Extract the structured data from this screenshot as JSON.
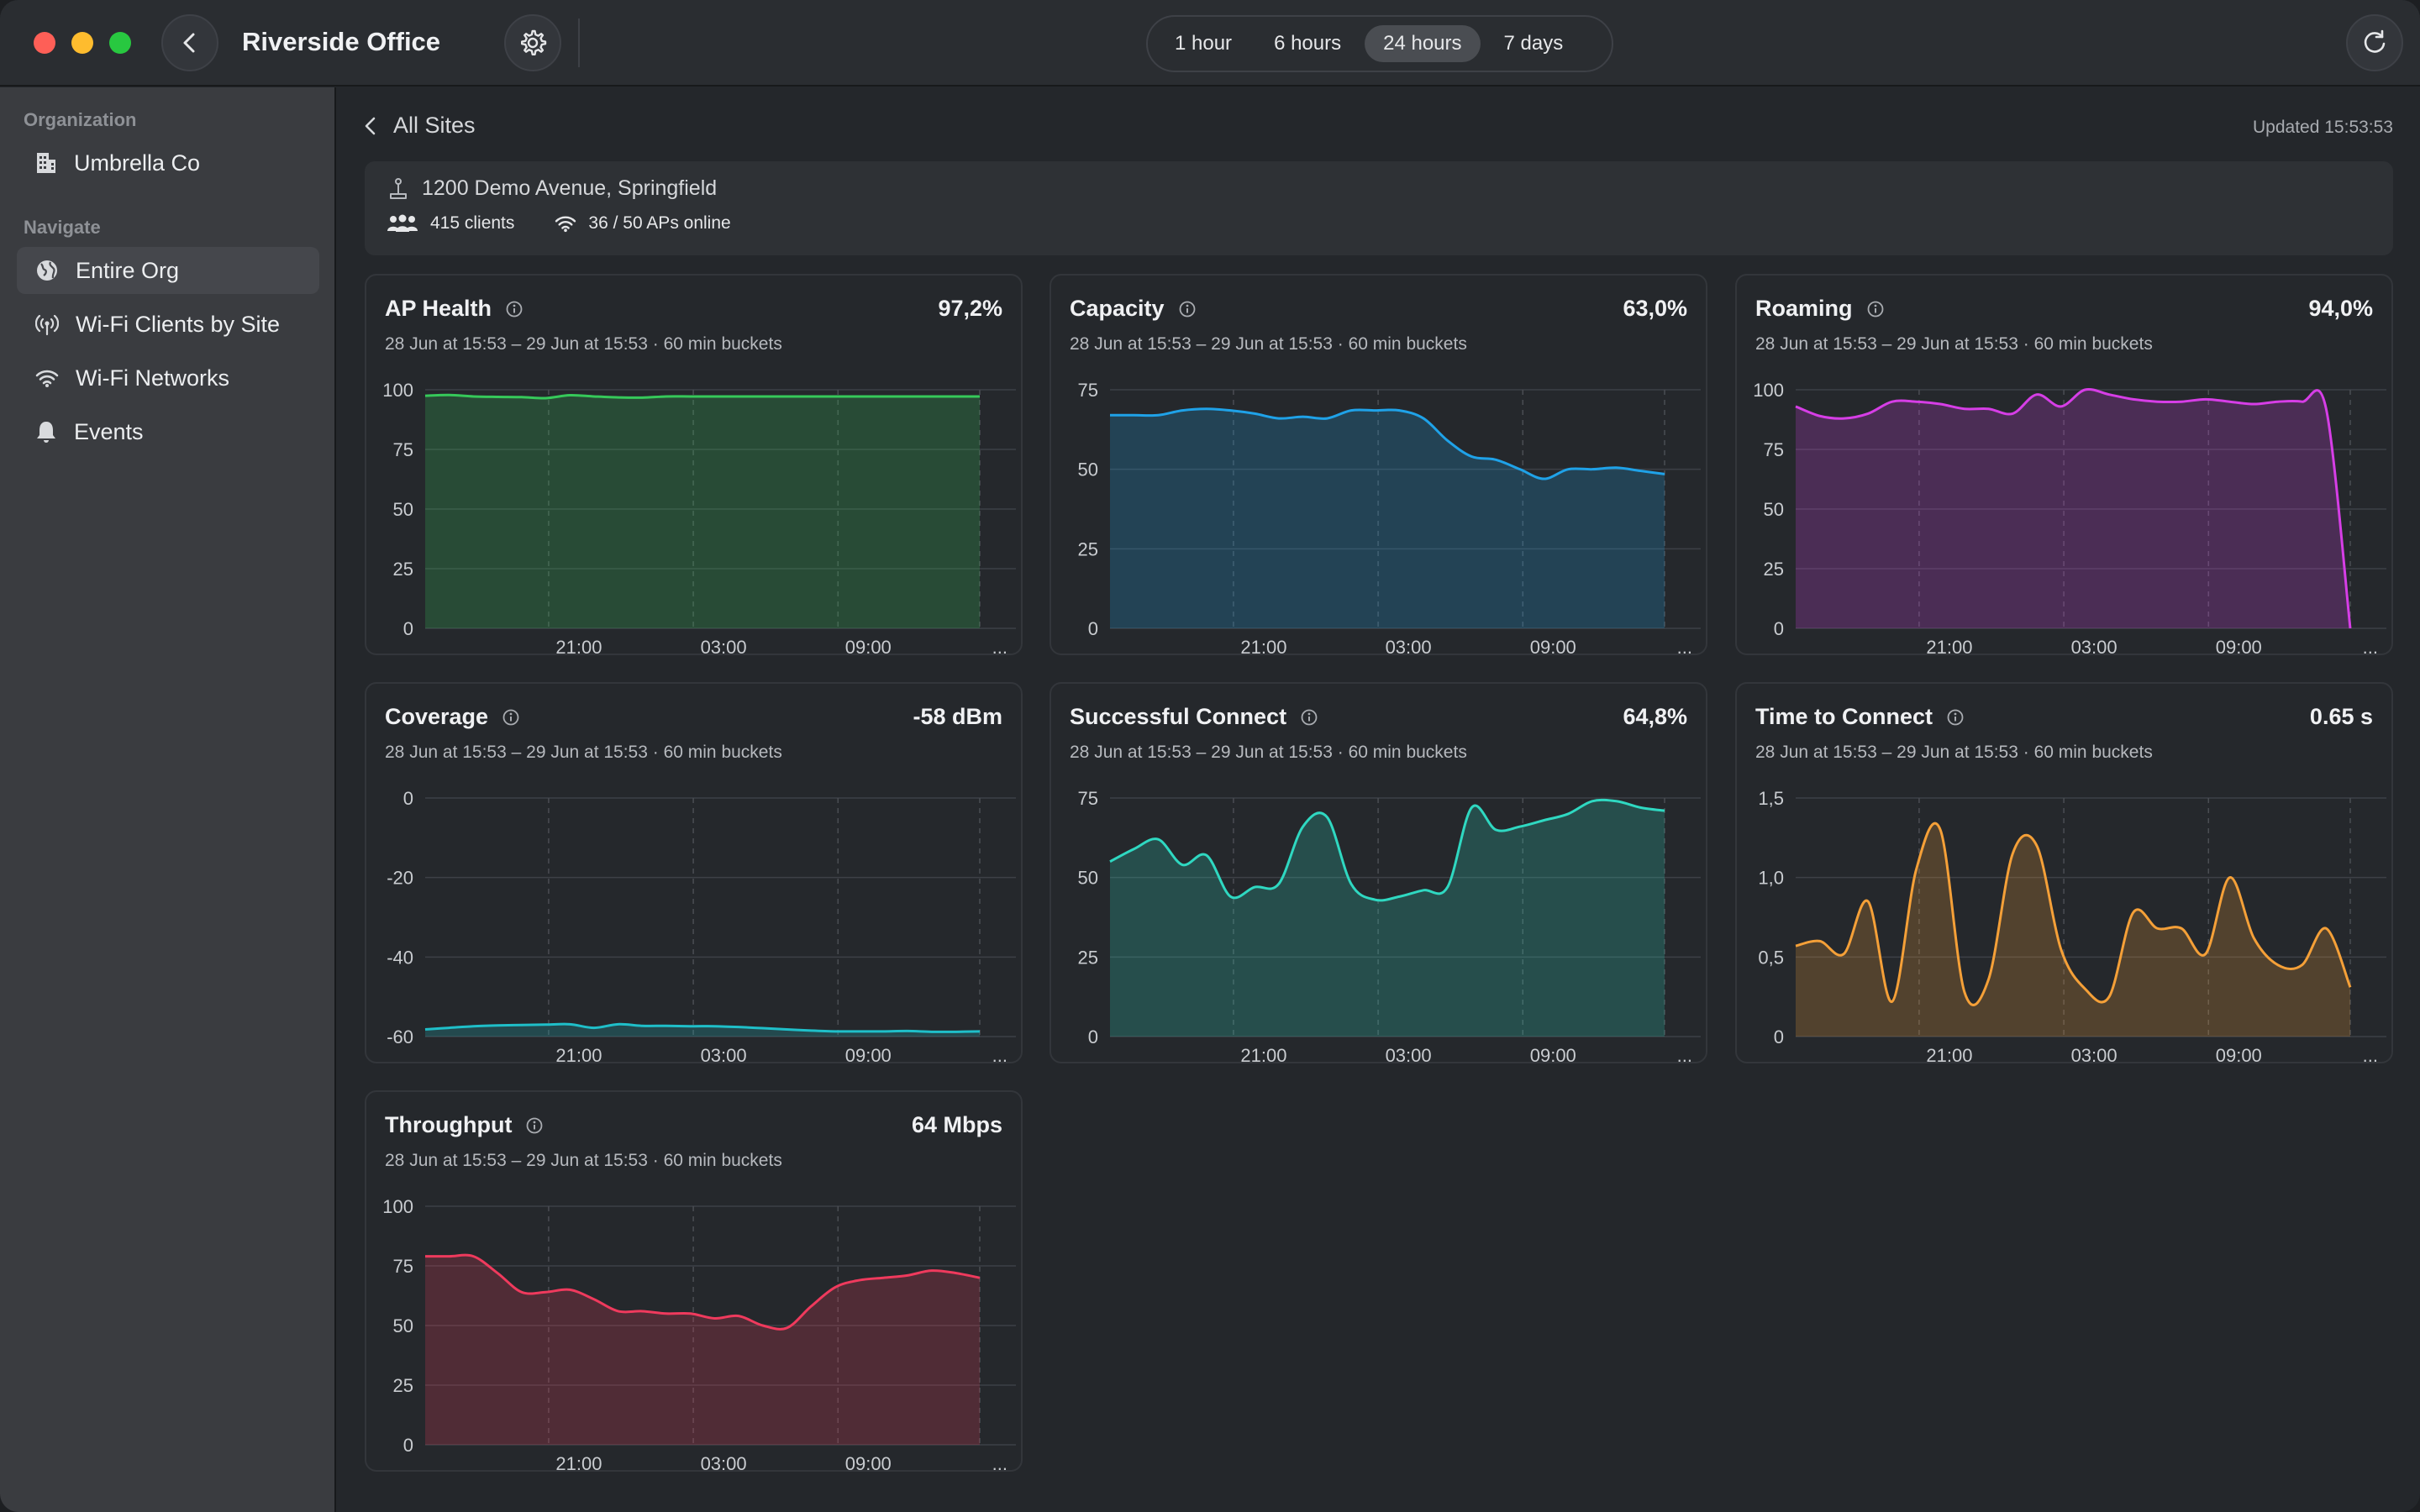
{
  "window": {
    "title": "Riverside Office"
  },
  "toolbar": {
    "ranges": [
      "1 hour",
      "6 hours",
      "24 hours",
      "7 days"
    ],
    "active_range": "24 hours"
  },
  "sidebar": {
    "org_section": "Organization",
    "org_name": "Umbrella Co",
    "nav_section": "Navigate",
    "items": [
      {
        "label": "Entire Org",
        "icon": "globe-icon"
      },
      {
        "label": "Wi-Fi Clients by Site",
        "icon": "antenna-icon"
      },
      {
        "label": "Wi-Fi Networks",
        "icon": "wifi-icon"
      },
      {
        "label": "Events",
        "icon": "bell-icon"
      }
    ],
    "active_item": "Entire Org"
  },
  "main": {
    "breadcrumb": "All Sites",
    "updated": "Updated 15:53:53",
    "site": {
      "address": "1200 Demo Avenue, Springfield",
      "clients": "415 clients",
      "aps": "36 / 50 APs online"
    }
  },
  "colors": {
    "green": "#36c95a",
    "blue": "#1fa2e8",
    "magenta": "#d63ee6",
    "teal": "#1fbfc9",
    "cyan": "#2fd8c1",
    "orange": "#f5a038",
    "red": "#ef3a5d"
  },
  "chart_data": [
    {
      "type": "area",
      "title": "AP Health",
      "value": "97,2%",
      "subtitle": "28 Jun at 15:53 – 29 Jun at 15:53 · 60 min buckets",
      "color": "#36c95a",
      "ylim": [
        0,
        100
      ],
      "yticks": [
        "100",
        "75",
        "50",
        "25",
        "0"
      ],
      "xticks": [
        "21:00",
        "03:00",
        "09:00",
        "..."
      ],
      "x_of_ticks": [
        5.12,
        11.12,
        17.12
      ],
      "x": [
        0,
        1,
        2,
        3,
        4,
        5,
        6,
        7,
        8,
        9,
        10,
        11,
        12,
        13,
        14,
        15,
        16,
        17,
        18,
        19,
        20,
        21,
        22,
        23
      ],
      "values": [
        97.5,
        97.8,
        97.2,
        97.0,
        96.9,
        96.5,
        97.7,
        97.2,
        96.8,
        96.7,
        97.2,
        97.2,
        97.2,
        97.2,
        97.2,
        97.2,
        97.2,
        97.2,
        97.2,
        97.2,
        97.2,
        97.2,
        97.2,
        97.2
      ]
    },
    {
      "type": "area",
      "title": "Capacity",
      "value": "63,0%",
      "subtitle": "28 Jun at 15:53 – 29 Jun at 15:53 · 60 min buckets",
      "color": "#1fa2e8",
      "ylim": [
        0,
        75
      ],
      "yticks": [
        "75",
        "50",
        "25",
        "0"
      ],
      "xticks": [
        "21:00",
        "03:00",
        "09:00",
        "..."
      ],
      "x_of_ticks": [
        5.12,
        11.12,
        17.12
      ],
      "x": [
        0,
        1,
        2,
        3,
        4,
        5,
        6,
        7,
        8,
        9,
        10,
        11,
        12,
        13,
        14,
        15,
        16,
        17,
        18,
        19,
        20,
        21,
        22,
        23
      ],
      "values": [
        67,
        67,
        67,
        68.5,
        69,
        68.5,
        67.5,
        66,
        66.5,
        66,
        68.5,
        68.5,
        68.5,
        66,
        59,
        54,
        53,
        50,
        47,
        50,
        50,
        50.5,
        49.5,
        48.5
      ]
    },
    {
      "type": "area",
      "title": "Roaming",
      "value": "94,0%",
      "subtitle": "28 Jun at 15:53 – 29 Jun at 15:53 · 60 min buckets",
      "color": "#d63ee6",
      "ylim": [
        0,
        100
      ],
      "yticks": [
        "100",
        "75",
        "50",
        "25",
        "0"
      ],
      "xticks": [
        "21:00",
        "03:00",
        "09:00",
        "..."
      ],
      "x_of_ticks": [
        5.12,
        11.12,
        17.12
      ],
      "x": [
        0,
        1,
        2,
        3,
        4,
        5,
        6,
        7,
        8,
        9,
        10,
        11,
        12,
        13,
        14,
        15,
        16,
        17,
        18,
        19,
        20,
        21,
        22,
        23
      ],
      "values": [
        93,
        89,
        88,
        90,
        95,
        95,
        94,
        92,
        92,
        90,
        98,
        93,
        100,
        98,
        96,
        95,
        95,
        96,
        95,
        94,
        95,
        95,
        92,
        0
      ]
    },
    {
      "type": "area",
      "title": "Coverage",
      "value": "-58 dBm",
      "subtitle": "28 Jun at 15:53 – 29 Jun at 15:53 · 60 min buckets",
      "color": "#1fbfc9",
      "ylim": [
        -60,
        0
      ],
      "yticks": [
        "0",
        "-20",
        "-40",
        "-60"
      ],
      "xticks": [
        "21:00",
        "03:00",
        "09:00",
        "..."
      ],
      "x_of_ticks": [
        5.12,
        11.12,
        17.12
      ],
      "x": [
        0,
        1,
        2,
        3,
        4,
        5,
        6,
        7,
        8,
        9,
        10,
        11,
        12,
        13,
        14,
        15,
        16,
        17,
        18,
        19,
        20,
        21,
        22,
        23
      ],
      "values": [
        -58.2,
        -57.8,
        -57.4,
        -57.2,
        -57.1,
        -57.0,
        -56.9,
        -57.8,
        -56.9,
        -57.3,
        -57.3,
        -57.4,
        -57.4,
        -57.6,
        -57.9,
        -58.2,
        -58.5,
        -58.7,
        -58.7,
        -58.7,
        -58.6,
        -58.8,
        -58.8,
        -58.7
      ]
    },
    {
      "type": "area",
      "title": "Successful Connect",
      "value": "64,8%",
      "subtitle": "28 Jun at 15:53 – 29 Jun at 15:53 · 60 min buckets",
      "color": "#2fd8c1",
      "ylim": [
        0,
        75
      ],
      "yticks": [
        "75",
        "50",
        "25",
        "0"
      ],
      "xticks": [
        "21:00",
        "03:00",
        "09:00",
        "..."
      ],
      "x_of_ticks": [
        5.12,
        11.12,
        17.12
      ],
      "x": [
        0,
        1,
        2,
        3,
        4,
        5,
        6,
        7,
        8,
        9,
        10,
        11,
        12,
        13,
        14,
        15,
        16,
        17,
        18,
        19,
        20,
        21,
        22,
        23
      ],
      "values": [
        55,
        59,
        62,
        54,
        57,
        44,
        47,
        48,
        66,
        69,
        48,
        43,
        44,
        46,
        47,
        72,
        65,
        66,
        68,
        70,
        74,
        74,
        72,
        71
      ]
    },
    {
      "type": "area",
      "title": "Time to Connect",
      "value": "0.65 s",
      "subtitle": "28 Jun at 15:53 – 29 Jun at 15:53 · 60 min buckets",
      "color": "#f5a038",
      "ylim": [
        0,
        1.5
      ],
      "yticks": [
        "1,5",
        "1,0",
        "0,5",
        "0"
      ],
      "xticks": [
        "21:00",
        "03:00",
        "09:00",
        "..."
      ],
      "x_of_ticks": [
        5.12,
        11.12,
        17.12
      ],
      "x": [
        0,
        1,
        2,
        3,
        4,
        5,
        6,
        7,
        8,
        9,
        10,
        11,
        12,
        13,
        14,
        15,
        16,
        17,
        18,
        19,
        20,
        21,
        22,
        23
      ],
      "values": [
        0.57,
        0.6,
        0.52,
        0.85,
        0.22,
        1.05,
        1.3,
        0.28,
        0.36,
        1.15,
        1.2,
        0.55,
        0.3,
        0.25,
        0.78,
        0.68,
        0.68,
        0.52,
        1.0,
        0.62,
        0.45,
        0.45,
        0.68,
        0.31
      ]
    },
    {
      "type": "area",
      "title": "Throughput",
      "value": "64 Mbps",
      "subtitle": "28 Jun at 15:53 – 29 Jun at 15:53 · 60 min buckets",
      "color": "#ef3a5d",
      "ylim": [
        0,
        100
      ],
      "yticks": [
        "100",
        "75",
        "50",
        "25",
        "0"
      ],
      "xticks": [
        "21:00",
        "03:00",
        "09:00",
        "..."
      ],
      "x_of_ticks": [
        5.12,
        11.12,
        17.12
      ],
      "x": [
        0,
        1,
        2,
        3,
        4,
        5,
        6,
        7,
        8,
        9,
        10,
        11,
        12,
        13,
        14,
        15,
        16,
        17,
        18,
        19,
        20,
        21,
        22,
        23
      ],
      "values": [
        79,
        79,
        79,
        72,
        64,
        64,
        65,
        61,
        56,
        56,
        55,
        55,
        53,
        54,
        50,
        49,
        58,
        66,
        69,
        70,
        71,
        73,
        72,
        70
      ]
    }
  ]
}
